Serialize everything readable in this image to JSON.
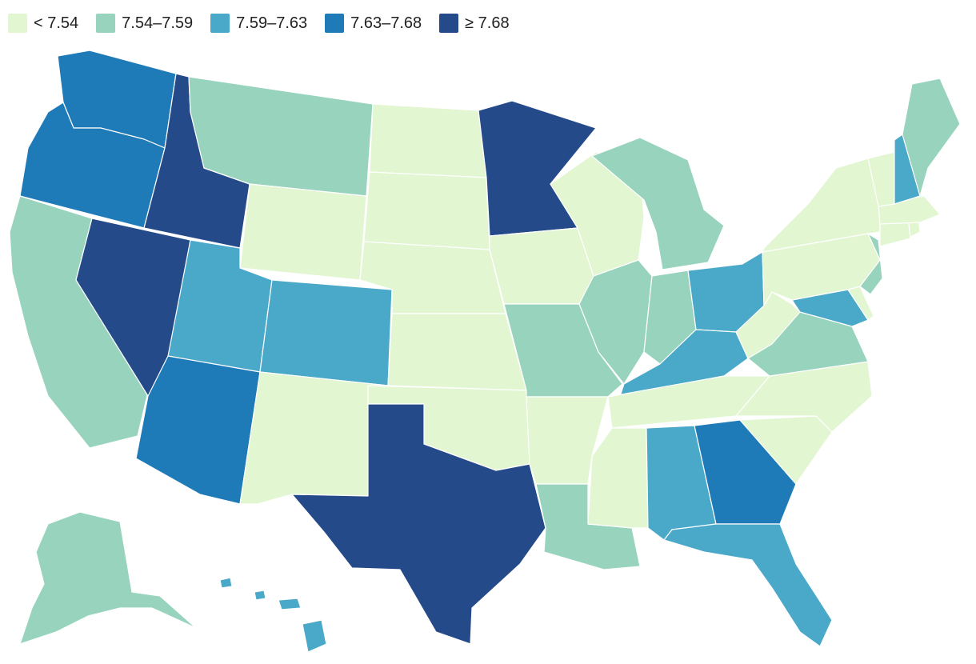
{
  "legend": {
    "bins": [
      {
        "label": "< 7.54",
        "color": "#e2f6d2",
        "key": "bin1"
      },
      {
        "label": "7.54–7.59",
        "color": "#97d3bd",
        "key": "bin2"
      },
      {
        "label": "7.59–7.63",
        "color": "#4aa8c9",
        "key": "bin3"
      },
      {
        "label": "7.63–7.68",
        "color": "#1f7ab8",
        "key": "bin4"
      },
      {
        "label": "≥ 7.68",
        "color": "#244a8a",
        "key": "bin5"
      }
    ]
  },
  "map": {
    "type": "choropleth",
    "region": "United States",
    "states": [
      {
        "abbr": "WA",
        "bin": "bin4"
      },
      {
        "abbr": "OR",
        "bin": "bin4"
      },
      {
        "abbr": "CA",
        "bin": "bin2"
      },
      {
        "abbr": "NV",
        "bin": "bin5"
      },
      {
        "abbr": "ID",
        "bin": "bin5"
      },
      {
        "abbr": "MT",
        "bin": "bin2"
      },
      {
        "abbr": "WY",
        "bin": "bin1"
      },
      {
        "abbr": "UT",
        "bin": "bin3"
      },
      {
        "abbr": "AZ",
        "bin": "bin4"
      },
      {
        "abbr": "CO",
        "bin": "bin3"
      },
      {
        "abbr": "NM",
        "bin": "bin1"
      },
      {
        "abbr": "ND",
        "bin": "bin1"
      },
      {
        "abbr": "SD",
        "bin": "bin1"
      },
      {
        "abbr": "NE",
        "bin": "bin1"
      },
      {
        "abbr": "KS",
        "bin": "bin1"
      },
      {
        "abbr": "OK",
        "bin": "bin1"
      },
      {
        "abbr": "TX",
        "bin": "bin5"
      },
      {
        "abbr": "MN",
        "bin": "bin5"
      },
      {
        "abbr": "IA",
        "bin": "bin1"
      },
      {
        "abbr": "MO",
        "bin": "bin2"
      },
      {
        "abbr": "AR",
        "bin": "bin1"
      },
      {
        "abbr": "LA",
        "bin": "bin2"
      },
      {
        "abbr": "WI",
        "bin": "bin1"
      },
      {
        "abbr": "IL",
        "bin": "bin2"
      },
      {
        "abbr": "MI",
        "bin": "bin2"
      },
      {
        "abbr": "IN",
        "bin": "bin2"
      },
      {
        "abbr": "OH",
        "bin": "bin3"
      },
      {
        "abbr": "KY",
        "bin": "bin3"
      },
      {
        "abbr": "TN",
        "bin": "bin1"
      },
      {
        "abbr": "MS",
        "bin": "bin1"
      },
      {
        "abbr": "AL",
        "bin": "bin3"
      },
      {
        "abbr": "GA",
        "bin": "bin4"
      },
      {
        "abbr": "FL",
        "bin": "bin3"
      },
      {
        "abbr": "SC",
        "bin": "bin1"
      },
      {
        "abbr": "NC",
        "bin": "bin1"
      },
      {
        "abbr": "VA",
        "bin": "bin2"
      },
      {
        "abbr": "WV",
        "bin": "bin1"
      },
      {
        "abbr": "MD",
        "bin": "bin3"
      },
      {
        "abbr": "DE",
        "bin": "bin1"
      },
      {
        "abbr": "PA",
        "bin": "bin1"
      },
      {
        "abbr": "NJ",
        "bin": "bin2"
      },
      {
        "abbr": "NY",
        "bin": "bin1"
      },
      {
        "abbr": "CT",
        "bin": "bin1"
      },
      {
        "abbr": "RI",
        "bin": "bin1"
      },
      {
        "abbr": "MA",
        "bin": "bin1"
      },
      {
        "abbr": "VT",
        "bin": "bin1"
      },
      {
        "abbr": "NH",
        "bin": "bin3"
      },
      {
        "abbr": "ME",
        "bin": "bin2"
      },
      {
        "abbr": "AK",
        "bin": "bin2"
      },
      {
        "abbr": "HI",
        "bin": "bin3"
      }
    ]
  }
}
